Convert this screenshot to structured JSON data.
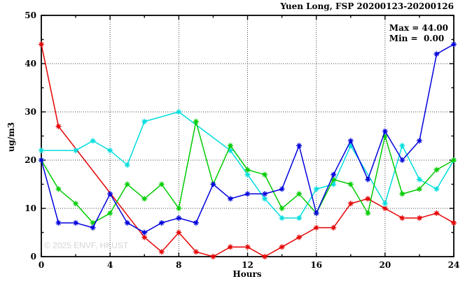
{
  "title": "Yuen Long, FSP 20200123-20200126",
  "stats": {
    "max_label": "Max = 44.00",
    "min_label": "Min =  0.00"
  },
  "watermark": "© 2025 ENVF, HKUST",
  "chart_data": {
    "type": "line",
    "title": "Yuen Long, FSP 20200123-20200126",
    "xlabel": "Hours",
    "ylabel": "ug/m3",
    "xlim": [
      0,
      24
    ],
    "ylim": [
      0,
      50
    ],
    "xticks_major": [
      0,
      4,
      8,
      12,
      16,
      20,
      24
    ],
    "xticks_minor_step": 2,
    "yticks_major": [
      0,
      10,
      20,
      30,
      40,
      50
    ],
    "yticks_minor_step": 5,
    "grid": true,
    "grid_style": "dotted",
    "legend_position": "top-right-inside",
    "annotations": {
      "max": 44.0,
      "min": 0.0
    },
    "marker": "asterisk",
    "series": [
      {
        "name": "red",
        "color": "#e60000",
        "points": [
          [
            0,
            44
          ],
          [
            1,
            27
          ],
          [
            6,
            4
          ],
          [
            7,
            1
          ],
          [
            8,
            5
          ],
          [
            9,
            1
          ],
          [
            10,
            0
          ],
          [
            11,
            2
          ],
          [
            12,
            2
          ],
          [
            13,
            0
          ],
          [
            14,
            2
          ],
          [
            15,
            4
          ],
          [
            16,
            6
          ],
          [
            17,
            6
          ],
          [
            18,
            11
          ],
          [
            19,
            12
          ],
          [
            20,
            10
          ],
          [
            21,
            8
          ],
          [
            22,
            8
          ],
          [
            23,
            9
          ],
          [
            24,
            7
          ]
        ]
      },
      {
        "name": "cyan",
        "color": "#00dddd",
        "points": [
          [
            0,
            22
          ],
          [
            2,
            22
          ],
          [
            3,
            24
          ],
          [
            4,
            22
          ],
          [
            5,
            19
          ],
          [
            6,
            28
          ],
          [
            8,
            30
          ],
          [
            11,
            22
          ],
          [
            12,
            17
          ],
          [
            13,
            12
          ],
          [
            14,
            8
          ],
          [
            15,
            8
          ],
          [
            16,
            14
          ],
          [
            17,
            15
          ],
          [
            18,
            23
          ],
          [
            20,
            11
          ],
          [
            21,
            23
          ],
          [
            22,
            16
          ],
          [
            23,
            14
          ],
          [
            24,
            20
          ]
        ]
      },
      {
        "name": "green",
        "color": "#00cc00",
        "points": [
          [
            0,
            20
          ],
          [
            1,
            14
          ],
          [
            2,
            11
          ],
          [
            3,
            7
          ],
          [
            4,
            9
          ],
          [
            5,
            15
          ],
          [
            6,
            12
          ],
          [
            7,
            15
          ],
          [
            8,
            10
          ],
          [
            9,
            28
          ],
          [
            10,
            15
          ],
          [
            11,
            23
          ],
          [
            12,
            18
          ],
          [
            13,
            17
          ],
          [
            14,
            10
          ],
          [
            15,
            13
          ],
          [
            16,
            9
          ],
          [
            17,
            16
          ],
          [
            18,
            15
          ],
          [
            19,
            9
          ],
          [
            20,
            25
          ],
          [
            21,
            13
          ],
          [
            22,
            14
          ],
          [
            23,
            18
          ],
          [
            24,
            20
          ]
        ]
      },
      {
        "name": "blue",
        "color": "#0000dd",
        "points": [
          [
            0,
            20
          ],
          [
            1,
            7
          ],
          [
            2,
            7
          ],
          [
            3,
            6
          ],
          [
            4,
            13
          ],
          [
            5,
            7
          ],
          [
            6,
            5
          ],
          [
            7,
            7
          ],
          [
            8,
            8
          ],
          [
            9,
            7
          ],
          [
            10,
            15
          ],
          [
            11,
            12
          ],
          [
            12,
            13
          ],
          [
            13,
            13
          ],
          [
            14,
            14
          ],
          [
            15,
            23
          ],
          [
            16,
            9
          ],
          [
            17,
            17
          ],
          [
            18,
            24
          ],
          [
            19,
            16
          ],
          [
            20,
            26
          ],
          [
            21,
            20
          ],
          [
            22,
            24
          ],
          [
            23,
            42
          ],
          [
            24,
            44
          ]
        ]
      }
    ]
  }
}
